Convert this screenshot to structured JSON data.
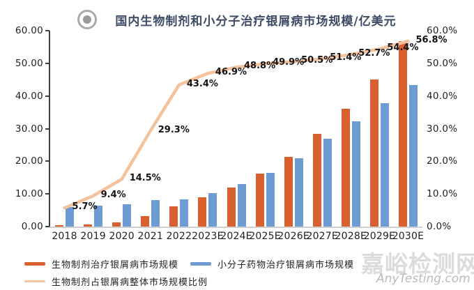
{
  "chart_data": {
    "type": "combo-bar-line",
    "title": "国内生物制剂和小分子治疗银屑病市场规模/亿美元",
    "categories": [
      "2018",
      "2019",
      "2020",
      "2021",
      "2022",
      "2023E",
      "2024E",
      "2025E",
      "2026E",
      "2027E",
      "2028E",
      "2029E",
      "2030E"
    ],
    "series": [
      {
        "name": "生物制剂治疗银屑病市场规模",
        "type": "bar",
        "axis": "left",
        "color": "#d95f2e",
        "values": [
          0.5,
          0.7,
          1.2,
          3.3,
          6.1,
          9.0,
          12.0,
          16.3,
          21.4,
          28.3,
          36.0,
          45.0,
          56.8
        ]
      },
      {
        "name": "小分子药物治疗银屑病市场规模",
        "type": "bar",
        "axis": "left",
        "color": "#6c9cd2",
        "values": [
          5.9,
          6.5,
          6.8,
          8.1,
          8.3,
          10.2,
          13.0,
          16.4,
          21.0,
          26.8,
          32.3,
          37.8,
          43.3
        ]
      },
      {
        "name": "生物制剂占银屑病整体市场规模比例",
        "type": "line",
        "axis": "right",
        "color": "#f4c29c",
        "values": [
          5.7,
          9.4,
          14.5,
          29.3,
          43.4,
          46.9,
          48.8,
          49.9,
          50.5,
          51.4,
          52.7,
          54.4,
          56.8
        ],
        "point_labels": [
          "5.7%",
          "9.4%",
          "14.5%",
          "29.3%",
          "43.4%",
          "46.9%",
          "48.8%",
          "49.9%",
          "50.5%",
          "51.4%",
          "52.7%",
          "54.4%",
          "56.8%"
        ]
      }
    ],
    "left_axis": {
      "min": 0,
      "max": 60,
      "ticks": [
        "60.00",
        "50.00",
        "40.00",
        "30.00",
        "20.00",
        "10.00",
        "0.00"
      ]
    },
    "right_axis": {
      "min": 0,
      "max": 60,
      "ticks": [
        "60.0%",
        "50.0%",
        "40.0%",
        "30.0%",
        "20.0%",
        "10.0%",
        "0.0%"
      ]
    },
    "grid": false,
    "legend_position": "bottom-left"
  },
  "watermark": {
    "name_cn": "嘉峪检测网",
    "site": "AnyTesting.com"
  }
}
